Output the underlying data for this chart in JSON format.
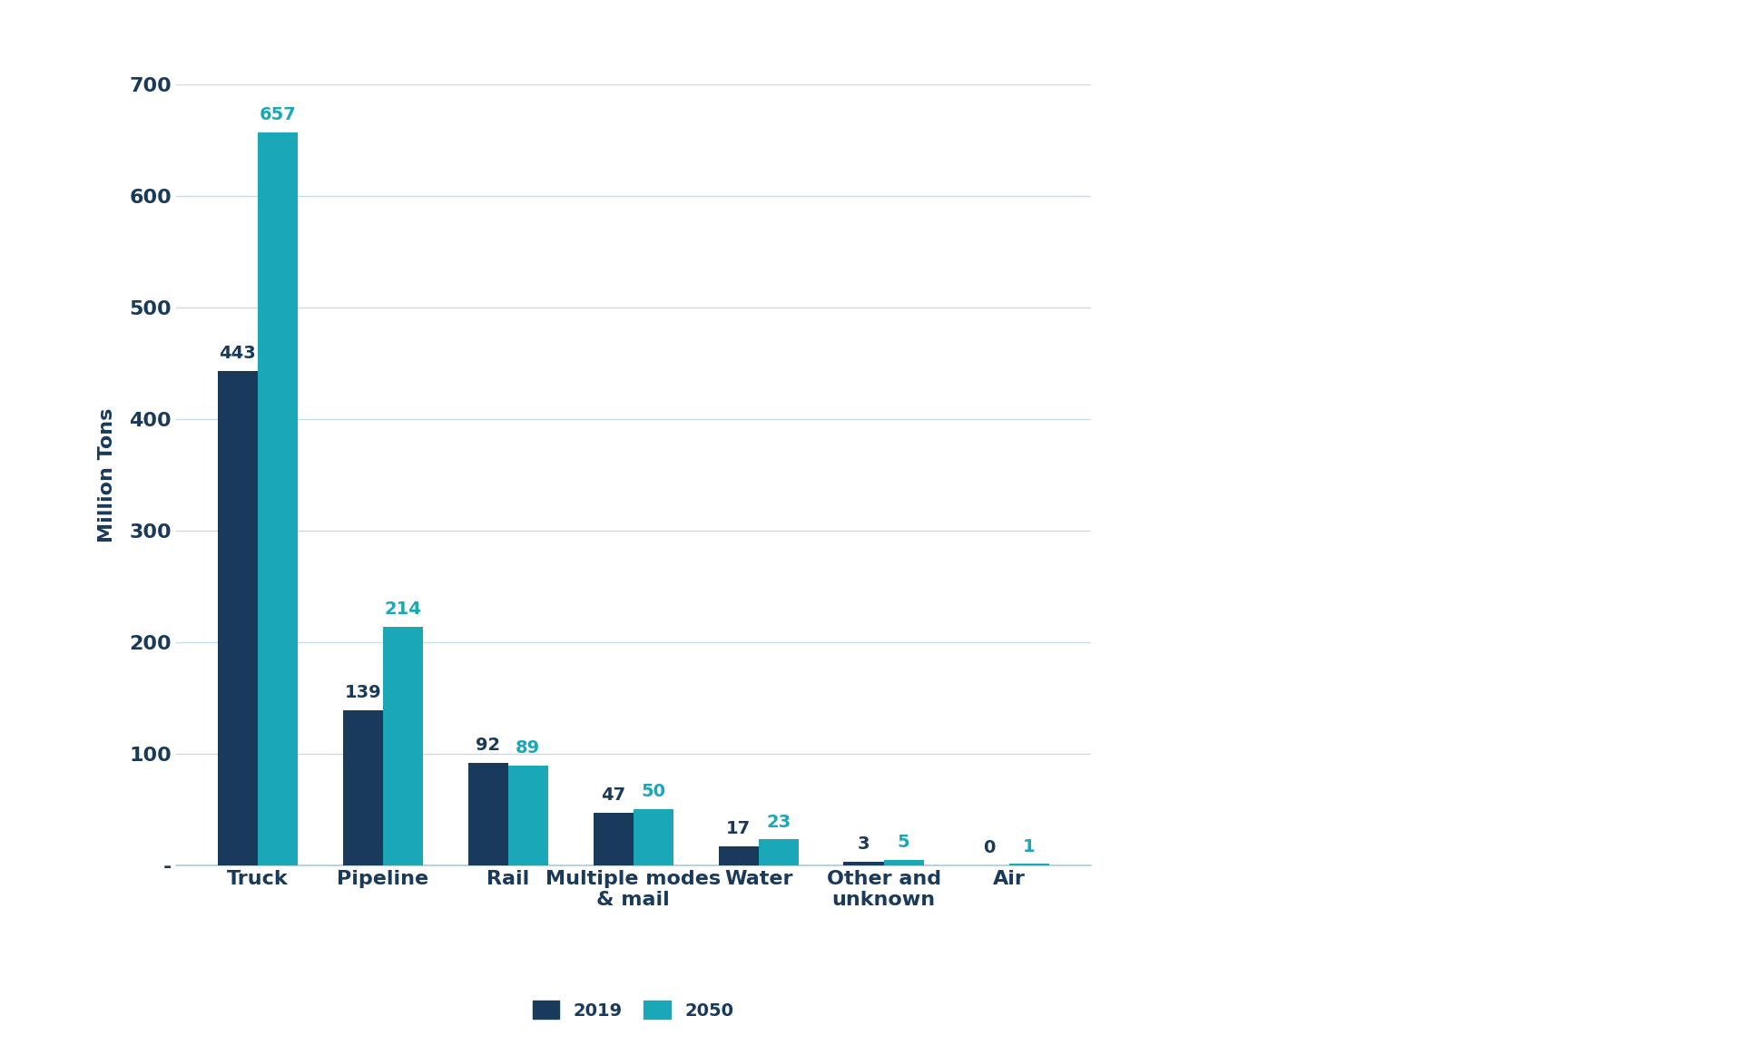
{
  "categories": [
    "Truck",
    "Pipeline",
    "Rail",
    "Multiple modes\n& mail",
    "Water",
    "Other and\nunknown",
    "Air"
  ],
  "values_2019": [
    443,
    139,
    92,
    47,
    17,
    3,
    0
  ],
  "values_2050": [
    657,
    214,
    89,
    50,
    23,
    5,
    1
  ],
  "color_2019": "#1a3a5c",
  "color_2050": "#1aa8b8",
  "ylabel": "Million Tons",
  "ylim": [
    0,
    700
  ],
  "yticks": [
    0,
    100,
    200,
    300,
    400,
    500,
    600,
    700
  ],
  "ytick_labels": [
    "-",
    "100",
    "200",
    "300",
    "400",
    "500",
    "600",
    "700"
  ],
  "legend_2019": "2019",
  "legend_2050": "2050",
  "bar_width": 0.32,
  "label_fontsize": 14,
  "tick_fontsize": 16,
  "ylabel_fontsize": 16,
  "legend_fontsize": 14,
  "background_color": "#ffffff",
  "label_color_2019": "#1a3a5c",
  "label_color_2050": "#1aa8b8",
  "axis_color": "#1a3a5c",
  "tick_color": "#1a3a5c"
}
